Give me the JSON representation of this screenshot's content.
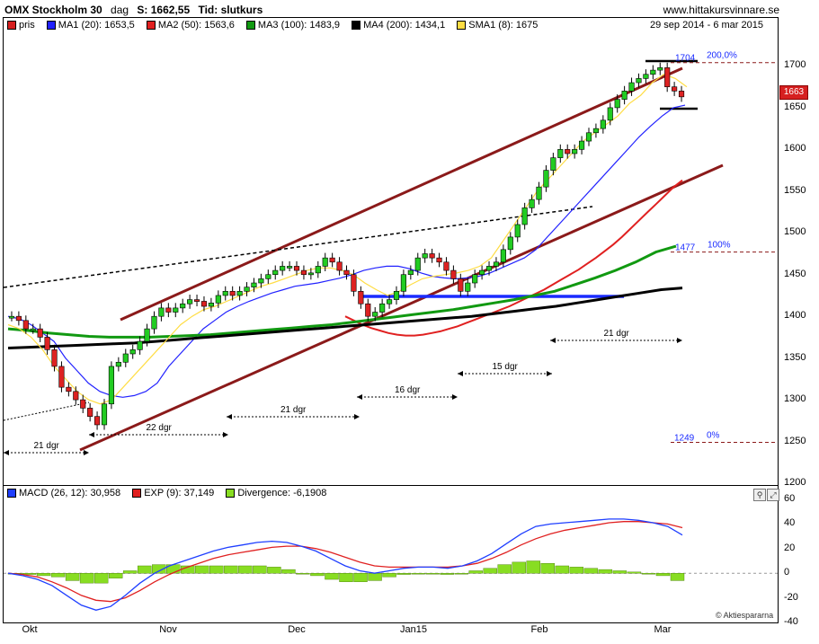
{
  "header": {
    "symbol": "OMX Stockholm 30",
    "period": "dag",
    "last": "S: 1662,55",
    "time_label": "Tid: slutkurs",
    "site": "www.hittakursvinnare.se"
  },
  "legend_top": {
    "pris": "pris",
    "ma1": "MA1 (20): 1653,5",
    "ma2": "MA2 (50): 1563,6",
    "ma3": "MA3 (100): 1483,9",
    "ma4": "MA4 (200): 1434,1",
    "sma1": "SMA1 (8): 1675",
    "date_range": "29 sep 2014 - 6 mar 2015",
    "colors": {
      "pris": "#d62020",
      "ma1": "#2222ff",
      "ma2": "#e02020",
      "ma3": "#119911",
      "ma4": "#000000",
      "sma1": "#ffdd44"
    }
  },
  "legend_macd": {
    "macd": "MACD (26, 12): 30,958",
    "exp": "EXP (9): 37,149",
    "div": "Divergence: -6,1908",
    "colors": {
      "macd": "#1f3fff",
      "exp": "#e02020",
      "div": "#88dd22"
    }
  },
  "price_badge": "1663",
  "copyright": "© Aktiespararna",
  "annotations": {
    "fib_top": "1704",
    "fib_top_pct": "200,0%",
    "fib_mid": "1477",
    "fib_mid_pct": "100%",
    "fib_low": "1249",
    "fib_low_pct": "0%",
    "cycle1": "21 dgr",
    "cycle2": "22 dgr",
    "cycle3": "21 dgr",
    "cycle4": "16 dgr",
    "cycle5": "15 dgr",
    "cycle6": "21 dgr"
  },
  "chart_data": [
    {
      "type": "line",
      "title": "OMX Stockholm 30",
      "x_axis_labels": [
        "Okt",
        "Nov",
        "Dec",
        "Jan15",
        "Feb",
        "Mar"
      ],
      "y_axis_labels": [
        "1700",
        "1650",
        "1600",
        "1550",
        "1500",
        "1450",
        "1400",
        "1350",
        "1300",
        "1250",
        "1200"
      ],
      "ylim": [
        1200,
        1750
      ],
      "grid": false,
      "series": [
        {
          "name": "pris",
          "values": [
            1400,
            1395,
            1385,
            1385,
            1375,
            1360,
            1340,
            1315,
            1310,
            1300,
            1290,
            1280,
            1270,
            1295,
            1340,
            1345,
            1355,
            1360,
            1370,
            1385,
            1400,
            1410,
            1405,
            1410,
            1415,
            1420,
            1418,
            1412,
            1416,
            1425,
            1430,
            1425,
            1430,
            1435,
            1440,
            1445,
            1450,
            1455,
            1460,
            1460,
            1455,
            1450,
            1452,
            1460,
            1470,
            1465,
            1455,
            1450,
            1430,
            1415,
            1400,
            1405,
            1415,
            1420,
            1430,
            1450,
            1455,
            1470,
            1475,
            1470,
            1465,
            1455,
            1445,
            1430,
            1440,
            1450,
            1455,
            1460,
            1465,
            1480,
            1495,
            1510,
            1530,
            1540,
            1555,
            1575,
            1590,
            1600,
            1595,
            1600,
            1610,
            1620,
            1625,
            1635,
            1650,
            1660,
            1670,
            1680,
            1685,
            1690,
            1695,
            1698,
            1675,
            1670,
            1663
          ]
        },
        {
          "name": "MA1 (20)",
          "values": [
            1400,
            1397,
            1390,
            1380,
            1370,
            1350,
            1335,
            1320,
            1310,
            1305,
            1303,
            1305,
            1310,
            1320,
            1340,
            1355,
            1370,
            1385,
            1395,
            1405,
            1412,
            1418,
            1423,
            1428,
            1432,
            1436,
            1438,
            1440,
            1443,
            1446,
            1450,
            1455,
            1458,
            1460,
            1460,
            1457,
            1452,
            1448,
            1446,
            1445,
            1446,
            1448,
            1452,
            1458,
            1464,
            1470,
            1480,
            1495,
            1510,
            1525,
            1540,
            1555,
            1570,
            1585,
            1600,
            1615,
            1628,
            1640,
            1650,
            1653
          ]
        },
        {
          "name": "MA2 (50)",
          "values": [
            1400,
            1395,
            1390,
            1386,
            1383,
            1380,
            1378,
            1377,
            1377,
            1378,
            1380,
            1382,
            1385,
            1388,
            1392,
            1396,
            1400,
            1404,
            1408,
            1412,
            1417,
            1422,
            1427,
            1432,
            1438,
            1444,
            1450,
            1456,
            1463,
            1470,
            1478,
            1486,
            1495,
            1505,
            1515,
            1525,
            1535,
            1545,
            1555,
            1563
          ]
        },
        {
          "name": "MA3 (100)",
          "values": [
            1385,
            1383,
            1380,
            1378,
            1376,
            1375,
            1375,
            1375,
            1376,
            1377,
            1378,
            1380,
            1382,
            1384,
            1386,
            1388,
            1390,
            1393,
            1396,
            1399,
            1402,
            1405,
            1408,
            1412,
            1416,
            1420,
            1425,
            1430,
            1438,
            1446,
            1455,
            1465,
            1477,
            1484
          ]
        },
        {
          "name": "MA4 (200)",
          "values": [
            1362,
            1363,
            1364,
            1365,
            1366,
            1367,
            1368,
            1370,
            1372,
            1374,
            1376,
            1378,
            1380,
            1382,
            1384,
            1386,
            1388,
            1390,
            1392,
            1394,
            1396,
            1398,
            1400,
            1403,
            1406,
            1409,
            1412,
            1416,
            1420,
            1424,
            1428,
            1432,
            1434
          ]
        },
        {
          "name": "SMA1 (8)",
          "values": [
            1390,
            1385,
            1375,
            1360,
            1340,
            1325,
            1310,
            1300,
            1295,
            1300,
            1315,
            1330,
            1345,
            1360,
            1375,
            1390,
            1400,
            1408,
            1412,
            1418,
            1424,
            1430,
            1436,
            1440,
            1445,
            1450,
            1455,
            1458,
            1458,
            1455,
            1450,
            1440,
            1432,
            1425,
            1430,
            1438,
            1445,
            1448,
            1450,
            1452,
            1455,
            1460,
            1470,
            1490,
            1510,
            1530,
            1550,
            1565,
            1580,
            1595,
            1610,
            1620,
            1630,
            1640,
            1655,
            1665,
            1680,
            1690,
            1685,
            1675
          ]
        }
      ]
    },
    {
      "type": "line",
      "title": "MACD",
      "ylim": [
        -40,
        60
      ],
      "y_axis_labels": [
        "60",
        "40",
        "20",
        "0",
        "-20",
        "-40"
      ],
      "grid": false,
      "series": [
        {
          "name": "MACD (26, 12)",
          "values": [
            0,
            -2,
            -5,
            -10,
            -18,
            -26,
            -30,
            -27,
            -18,
            -8,
            0,
            6,
            10,
            14,
            18,
            21,
            23,
            25,
            26,
            25,
            22,
            18,
            12,
            6,
            2,
            0,
            2,
            4,
            5,
            5,
            4,
            6,
            10,
            16,
            24,
            32,
            38,
            40,
            41,
            42,
            43,
            44,
            44,
            43,
            41,
            38,
            31
          ]
        },
        {
          "name": "EXP (9)",
          "values": [
            0,
            -1,
            -3,
            -7,
            -12,
            -18,
            -22,
            -23,
            -20,
            -14,
            -7,
            -1,
            4,
            8,
            12,
            15,
            17,
            19,
            21,
            22,
            22,
            20,
            17,
            13,
            9,
            6,
            5,
            5,
            5,
            5,
            5,
            6,
            8,
            12,
            17,
            23,
            28,
            32,
            35,
            37,
            39,
            41,
            42,
            42,
            41,
            40,
            37
          ]
        },
        {
          "name": "Divergence",
          "values": [
            0,
            -1,
            -2,
            -3,
            -6,
            -8,
            -8,
            -4,
            2,
            6,
            7,
            7,
            6,
            6,
            6,
            6,
            6,
            6,
            5,
            3,
            0,
            -2,
            -5,
            -7,
            -7,
            -6,
            -3,
            -1,
            0,
            0,
            -1,
            0,
            2,
            4,
            7,
            9,
            10,
            8,
            6,
            5,
            4,
            3,
            2,
            1,
            0,
            -2,
            -6
          ]
        }
      ]
    }
  ]
}
